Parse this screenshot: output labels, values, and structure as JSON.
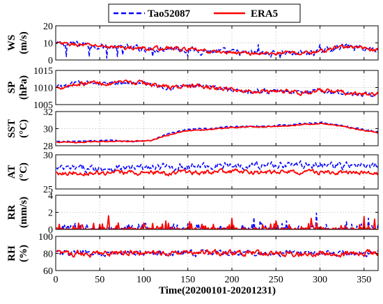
{
  "chart_data": [
    {
      "type": "line",
      "ylabel": "WS (m/s)",
      "ylabel_parts": [
        "WS",
        "(m/s)"
      ],
      "ylim": [
        0,
        20
      ],
      "yticks": [
        0,
        10,
        20
      ],
      "ytick_labels": [
        "0",
        "10",
        "20"
      ],
      "grid": true,
      "series": [
        {
          "name": "Tao52087",
          "baseline": [
            9.0,
            9.5,
            8.5,
            7.5,
            7.0,
            6.5,
            7.0,
            6.0,
            5.0,
            4.5,
            4.0,
            3.8,
            4.2,
            4.0,
            5.0,
            8.0,
            7.0,
            6.0
          ],
          "noise": 3.2,
          "outliers": [
            [
              12,
              2
            ],
            [
              38,
              2
            ],
            [
              58,
              1
            ],
            [
              70,
              2
            ],
            [
              76,
              3
            ],
            [
              110,
              2
            ],
            [
              150,
              2
            ],
            [
              230,
              9
            ],
            [
              255,
              1
            ],
            [
              300,
              9
            ]
          ]
        },
        {
          "name": "ERA5",
          "baseline": [
            9.5,
            9.0,
            8.5,
            7.5,
            7.0,
            6.5,
            7.0,
            6.0,
            5.0,
            4.5,
            4.0,
            3.8,
            4.2,
            4.0,
            5.0,
            8.0,
            7.0,
            6.0
          ],
          "noise": 2.0,
          "outliers": []
        }
      ]
    },
    {
      "type": "line",
      "ylabel": "SP (hPa)",
      "ylabel_parts": [
        "SP",
        "(hPa)"
      ],
      "ylim": [
        1005,
        1015
      ],
      "yticks": [
        1005,
        1010,
        1015
      ],
      "ytick_labels": [
        "1005",
        "1010",
        "1015"
      ],
      "grid": true,
      "series": [
        {
          "name": "Tao52087",
          "baseline": [
            1010,
            1011,
            1011.5,
            1011,
            1011.5,
            1011,
            1010,
            1010.5,
            1010,
            1009.5,
            1009,
            1009,
            1009,
            1008.5,
            1009,
            1008.5,
            1008,
            1008
          ],
          "noise": 1.2,
          "outliers": []
        },
        {
          "name": "ERA5",
          "baseline": [
            1010,
            1011,
            1011.5,
            1011,
            1011.5,
            1011,
            1010,
            1010.5,
            1010,
            1009.5,
            1009,
            1009,
            1009,
            1008.5,
            1009,
            1008.5,
            1008,
            1008
          ],
          "noise": 1.2,
          "outliers": []
        }
      ]
    },
    {
      "type": "line",
      "ylabel": "SST (°C)",
      "ylabel_parts": [
        "SST",
        "(°C)"
      ],
      "ylim": [
        28,
        32
      ],
      "yticks": [
        28,
        30,
        32
      ],
      "ytick_labels": [
        "28",
        "30",
        "32"
      ],
      "grid": true,
      "series": [
        {
          "name": "Tao52087",
          "baseline": [
            28.5,
            28.5,
            28.6,
            28.6,
            28.5,
            28.6,
            29.5,
            29.9,
            30.0,
            30.2,
            30.3,
            30.3,
            30.4,
            30.6,
            30.7,
            30.4,
            30.0,
            29.6
          ],
          "noise": 0.12,
          "outliers": []
        },
        {
          "name": "ERA5",
          "baseline": [
            28.4,
            28.4,
            28.5,
            28.5,
            28.5,
            28.6,
            29.3,
            29.8,
            29.9,
            30.1,
            30.2,
            30.2,
            30.3,
            30.5,
            30.6,
            30.3,
            29.9,
            29.5
          ],
          "noise": 0.12,
          "outliers": []
        }
      ]
    },
    {
      "type": "line",
      "ylabel": "AT (°C)",
      "ylabel_parts": [
        "AT",
        "(°C)"
      ],
      "ylim": [
        25,
        30
      ],
      "yticks": [
        25,
        30
      ],
      "ytick_labels": [
        "25",
        "30"
      ],
      "grid": true,
      "series": [
        {
          "name": "Tao52087",
          "baseline": [
            27.9,
            28.0,
            28.0,
            28.1,
            28.0,
            28.1,
            28.2,
            28.3,
            28.4,
            28.4,
            28.5,
            28.5,
            28.6,
            28.5,
            28.5,
            28.4,
            28.3,
            28.2
          ],
          "noise": 0.9,
          "outliers": []
        },
        {
          "name": "ERA5",
          "baseline": [
            27.4,
            27.4,
            27.3,
            27.3,
            27.4,
            27.4,
            27.3,
            27.4,
            27.4,
            27.5,
            27.5,
            27.4,
            27.5,
            27.5,
            27.4,
            27.4,
            27.3,
            27.3
          ],
          "noise": 0.6,
          "outliers": []
        }
      ]
    },
    {
      "type": "line",
      "ylabel": "RR (mm/s)",
      "ylabel_parts": [
        "RR",
        "(mm/s)"
      ],
      "ylim": [
        0,
        4
      ],
      "yticks": [
        0,
        2,
        4
      ],
      "ytick_labels": [
        "0",
        "2",
        "4"
      ],
      "grid": true,
      "series": [
        {
          "name": "Tao52087",
          "spiky": true,
          "spikes": [
            [
              10,
              0.5
            ],
            [
              35,
              0.6
            ],
            [
              100,
              0.8
            ],
            [
              160,
              0.5
            ],
            [
              200,
              0.8
            ],
            [
              225,
              1.4
            ],
            [
              232,
              1.0
            ],
            [
              262,
              1.0
            ],
            [
              296,
              1.9
            ],
            [
              330,
              0.9
            ],
            [
              355,
              1.3
            ]
          ]
        },
        {
          "name": "ERA5",
          "spiky": true,
          "spikes": [
            [
              20,
              0.4
            ],
            [
              50,
              0.6
            ],
            [
              60,
              1.6
            ],
            [
              110,
              0.7
            ],
            [
              125,
              1.0
            ],
            [
              152,
              0.9
            ],
            [
              200,
              1.3
            ],
            [
              250,
              1.0
            ],
            [
              290,
              1.3
            ],
            [
              350,
              1.5
            ],
            [
              362,
              1.2
            ]
          ]
        }
      ]
    },
    {
      "type": "line",
      "ylabel": "RH (%)",
      "ylabel_parts": [
        "RH",
        "(%)"
      ],
      "ylim": [
        60,
        100
      ],
      "yticks": [
        60,
        80,
        100
      ],
      "ytick_labels": [
        "60",
        "80",
        "100"
      ],
      "grid": true,
      "xlabel": "Time(20200101-20201231)",
      "series": [
        {
          "name": "Tao52087",
          "baseline": [
            80,
            81,
            79,
            80,
            81,
            80,
            80,
            80,
            81,
            80,
            81,
            80,
            80,
            81,
            80,
            79,
            80,
            81
          ],
          "noise": 6.0,
          "outliers": []
        },
        {
          "name": "ERA5",
          "baseline": [
            80,
            80,
            79,
            80,
            81,
            80,
            80,
            81,
            81,
            80,
            81,
            80,
            80,
            80,
            80,
            79,
            80,
            81
          ],
          "noise": 6.0,
          "outliers": []
        }
      ]
    }
  ],
  "x_axis": {
    "xlim": [
      0,
      366
    ],
    "xticks": [
      0,
      50,
      100,
      150,
      200,
      250,
      300,
      350
    ],
    "xtick_labels": [
      "0",
      "50",
      "100",
      "150",
      "200",
      "250",
      "300",
      "350"
    ],
    "xlabel": "Time(20200101-20201231)"
  },
  "legend": {
    "placement": "top-center",
    "entries": [
      {
        "name": "Tao52087",
        "color": "#0000ff",
        "style": "dashed"
      },
      {
        "name": "ERA5",
        "color": "#ff0000",
        "style": "solid"
      }
    ]
  },
  "colors": {
    "tao": "#0000ff",
    "era5": "#ff0000",
    "grid": "#d8d8d8",
    "axis": "#000000"
  }
}
